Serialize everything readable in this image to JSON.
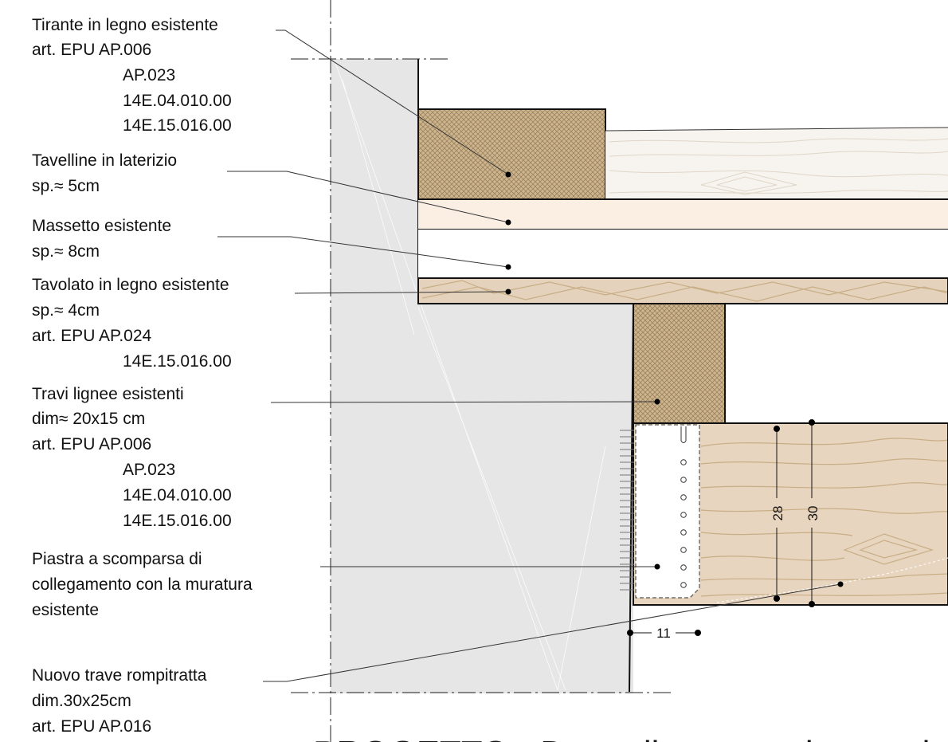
{
  "labels": [
    {
      "lines": [
        "Tirante in legno esistente",
        "art. EPU  AP.006",
        "AP.023",
        "14E.04.010.00",
        "14E.15.016.00"
      ]
    },
    {
      "lines": [
        "Tavelline in laterizio",
        "sp.≈ 5cm"
      ]
    },
    {
      "lines": [
        "Massetto esistente",
        "sp.≈ 8cm"
      ]
    },
    {
      "lines": [
        "Tavolato in legno esistente",
        "sp.≈ 4cm",
        "art. EPU  AP.024",
        "14E.15.016.00"
      ]
    },
    {
      "lines": [
        "Travi lignee esistenti",
        "dim≈ 20x15 cm",
        "art. EPU  AP.006",
        "AP.023",
        "14E.04.010.00",
        "14E.15.016.00"
      ]
    },
    {
      "lines": [
        "Piastra a scomparsa di",
        "collegamento con la muratura",
        "esistente"
      ]
    },
    {
      "lines": [
        "Nuovo trave rompitratta",
        "dim.30x25cm",
        "art. EPU AP.016"
      ]
    }
  ],
  "dimensions": {
    "d28": "28",
    "d30": "30",
    "d11": "11"
  },
  "title": "PROGETTO - Dettaglio appoggio rompitratta",
  "colors": {
    "wall": "#e6e6e6",
    "hatch": "#cfb58d",
    "hatch_line": "#9a8463",
    "brick": "#fbeee3",
    "plank": "#e4d2bc",
    "new_beam": "#e8d5bf",
    "grain": "#c8ae86",
    "plate": "#ffffff"
  }
}
